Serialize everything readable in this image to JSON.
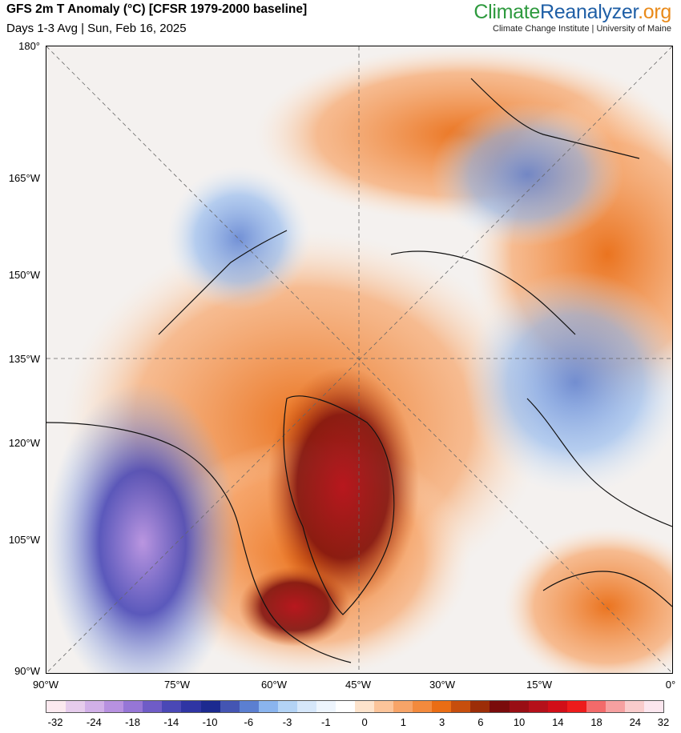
{
  "header": {
    "title": "GFS 2m T Anomaly (°C) [CFSR 1979-2000 baseline]",
    "subtitle": "Days 1-3 Avg | Sun, Feb 16, 2025"
  },
  "brand": {
    "part1": "Climate",
    "part2": "Reanalyzer",
    "part3": ".org",
    "affiliation": "Climate Change Institute | University of Maine"
  },
  "axes": {
    "left": [
      "180°",
      "165°W",
      "150°W",
      "135°W",
      "120°W",
      "105°W",
      "90°W"
    ],
    "bottom": [
      "90°W",
      "75°W",
      "60°W",
      "45°W",
      "30°W",
      "15°W",
      "0°"
    ]
  },
  "colorbar": {
    "colors": [
      "#fbe9ef",
      "#e6ccec",
      "#d1b0e8",
      "#b791e0",
      "#9676d6",
      "#6f5cc7",
      "#4a48b6",
      "#2f35a4",
      "#1c2a90",
      "#4455b3",
      "#5b7fd1",
      "#8ab4ee",
      "#b3d3f5",
      "#d6e7fa",
      "#eef5fd",
      "#ffffff",
      "#fde3cc",
      "#fbc49a",
      "#f7a468",
      "#f38a3d",
      "#ea6d14",
      "#c74e0d",
      "#9c2d07",
      "#7a0b0b",
      "#990e14",
      "#b5101a",
      "#d20e18",
      "#ee1b1b",
      "#f36a6a",
      "#f6a0a0",
      "#f9cccc",
      "#fbe6ee"
    ],
    "labels": [
      "-32",
      "-24",
      "-18",
      "-14",
      "-10",
      "-6",
      "-3",
      "-1",
      "0",
      "1",
      "3",
      "6",
      "10",
      "14",
      "18",
      "24",
      "32"
    ]
  },
  "map": {
    "blobs": [
      {
        "tone": "#f38a3d",
        "level": 4
      },
      {
        "tone": "#5b7fd1",
        "level": -4
      }
    ]
  }
}
